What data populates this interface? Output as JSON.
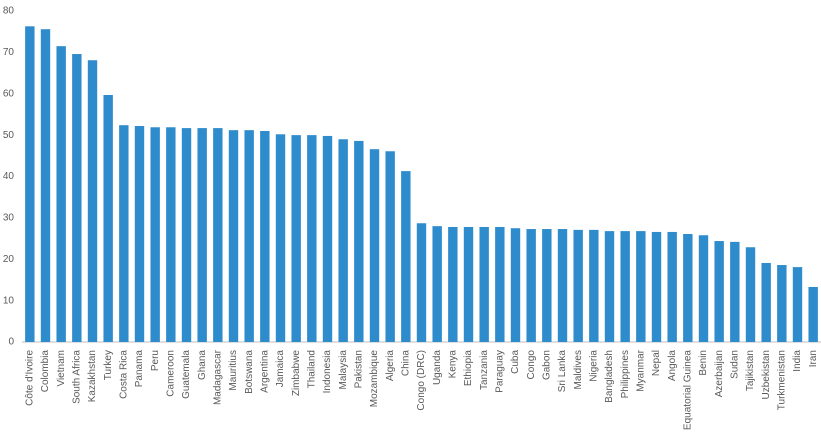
{
  "chart_data": {
    "type": "bar",
    "categories": [
      "Côte d'Ivoire",
      "Colombia",
      "Vietnam",
      "South Africa",
      "Kazakhstan",
      "Turkey",
      "Costa Rica",
      "Panama",
      "Peru",
      "Cameroon",
      "Guatemala",
      "Ghana",
      "Madagascar",
      "Mauritius",
      "Botswana",
      "Argentina",
      "Jamaica",
      "Zimbabwe",
      "Thailand",
      "Indonesia",
      "Malaysia",
      "Pakistan",
      "Mozambique",
      "Algeria",
      "China",
      "Congo (DRC)",
      "Uganda",
      "Kenya",
      "Ethiopia",
      "Tanzania",
      "Paraguay",
      "Cuba",
      "Congo",
      "Gabon",
      "Sri Lanka",
      "Maldives",
      "Nigeria",
      "Bangladesh",
      "Philippines",
      "Myanmar",
      "Nepal",
      "Angola",
      "Equatorial Guinea",
      "Benin",
      "Azerbaijan",
      "Sudan",
      "Tajikistan",
      "Uzbekistan",
      "Turkmenistan",
      "India",
      "Iran"
    ],
    "values": [
      76.3,
      75.6,
      71.5,
      69.6,
      68.1,
      59.7,
      52.4,
      52.2,
      51.9,
      51.9,
      51.7,
      51.7,
      51.7,
      51.2,
      51.2,
      51.0,
      50.2,
      50.0,
      50.0,
      49.8,
      49.0,
      48.6,
      46.6,
      46.1,
      41.3,
      28.7,
      28.0,
      27.8,
      27.8,
      27.8,
      27.8,
      27.5,
      27.3,
      27.3,
      27.3,
      27.1,
      27.1,
      26.8,
      26.8,
      26.8,
      26.6,
      26.6,
      26.1,
      25.8,
      24.4,
      24.2,
      22.9,
      19.1,
      18.6,
      18.1,
      13.3
    ],
    "color": "#2e8bcc",
    "ylim": [
      0,
      80
    ],
    "yticks": [
      0,
      10,
      20,
      30,
      40,
      50,
      60,
      70,
      80
    ],
    "grid": false
  }
}
